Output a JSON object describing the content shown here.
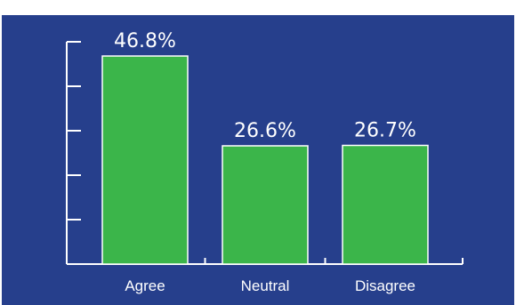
{
  "chart_data": {
    "type": "bar",
    "categories": [
      "Agree",
      "Neutral",
      "Disagree"
    ],
    "values": [
      46.8,
      26.6,
      26.7
    ],
    "data_labels": [
      "46.8%",
      "26.6%",
      "26.7%"
    ],
    "title": "",
    "xlabel": "",
    "ylabel": "",
    "ylim": [
      0,
      50
    ],
    "grid": false,
    "y_tick_labels_shown": false
  },
  "colors": {
    "background": "#263f8c",
    "bar": "#3bb54a",
    "axis": "#ffffff",
    "text": "#ffffff"
  }
}
